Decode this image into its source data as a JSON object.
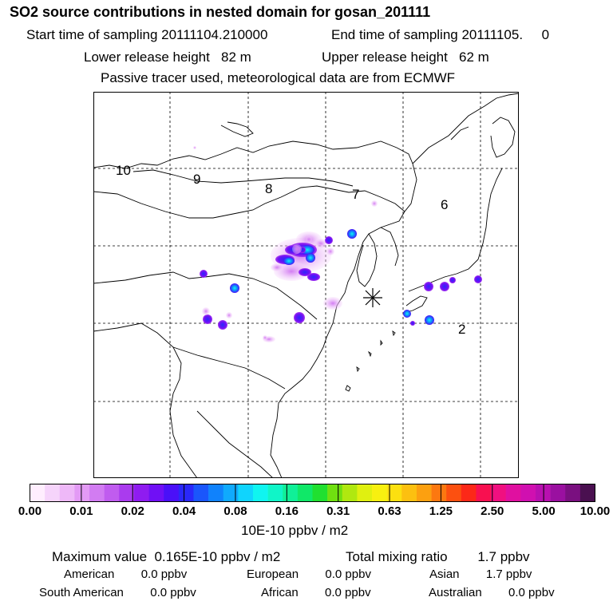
{
  "header": {
    "title": "SO2 source contributions in nested domain for gosan_201111",
    "start_label": "Start time of sampling 20111104.210000",
    "end_label": "End time of sampling 20111105.     0",
    "lower_release": "Lower release height   82 m",
    "upper_release": "Upper release height   62 m",
    "tracer_note": "Passive tracer used, meteorological data are from ECMWF"
  },
  "map": {
    "sector_labels": [
      "10",
      "9",
      "8",
      "7",
      "6",
      "2"
    ],
    "receptor_marker": "receptor-star",
    "land_color": "#ffffff",
    "coast_color": "#000000"
  },
  "colorbar": {
    "colors": [
      "#ffeefe",
      "#f6d4fb",
      "#eeb8f8",
      "#e39af5",
      "#d27cf2",
      "#c05cef",
      "#aa3bee",
      "#8f1cf0",
      "#7010f5",
      "#4a10f8",
      "#2a28fa",
      "#1a56fb",
      "#1082fc",
      "#10aafd",
      "#10d4fd",
      "#10f5f0",
      "#10f5c8",
      "#10f098",
      "#10e868",
      "#20e030",
      "#70e010",
      "#b0e810",
      "#e0f010",
      "#f8f010",
      "#fce010",
      "#fcc010",
      "#fca010",
      "#fc7810",
      "#fc5010",
      "#fc2818",
      "#f81050",
      "#f01080",
      "#e010a0",
      "#d010b0",
      "#b810b0",
      "#9a10a0",
      "#7a1080",
      "#4a1050"
    ],
    "tick_labels": [
      "0.00",
      "0.01",
      "0.02",
      "0.04",
      "0.08",
      "0.16",
      "0.31",
      "0.63",
      "1.25",
      "2.50",
      "5.00",
      "10.00"
    ],
    "unit": "10E-10 ppbv / m2"
  },
  "footer": {
    "max_value": "Maximum value  0.165E-10 ppbv / m2",
    "total_mixing": "Total mixing ratio        1.7 ppbv",
    "american": "American        0.0 ppbv",
    "european": "European        0.0 ppbv",
    "asian": "Asian        1.7 ppbv",
    "south_american": "South American        0.0 ppbv",
    "african": "African        0.0 ppbv",
    "australian": "Australian        0.0 ppbv"
  }
}
